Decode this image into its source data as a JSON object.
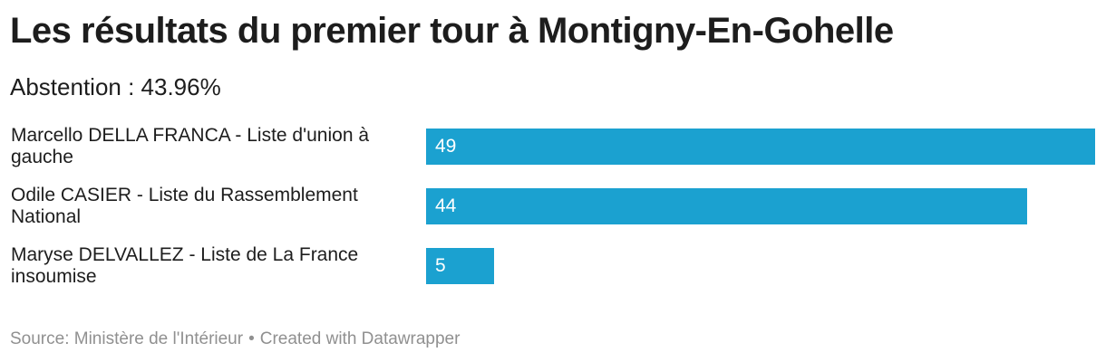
{
  "title": "Les résultats du premier tour à Montigny-En-Gohelle",
  "subtitle": "Abstention : 43.96%",
  "footer": {
    "source": "Source: Ministère de l'Intérieur",
    "separator": "•",
    "credit": "Created with Datawrapper"
  },
  "colors": {
    "bar": "#1ba1d0",
    "value_text": "#ffffff",
    "footer_text": "#909090"
  },
  "chart_data": {
    "type": "bar",
    "orientation": "horizontal",
    "categories": [
      "Marcello DELLA FRANCA - Liste d'union à gauche",
      "Odile CASIER - Liste du Rassemblement National",
      "Maryse DELVALLEZ - Liste de La France insoumise"
    ],
    "values": [
      49,
      44,
      5
    ],
    "value_labels": [
      "49",
      "44",
      "5"
    ],
    "xlim": [
      0,
      49
    ],
    "grid": false,
    "legend": "none"
  }
}
